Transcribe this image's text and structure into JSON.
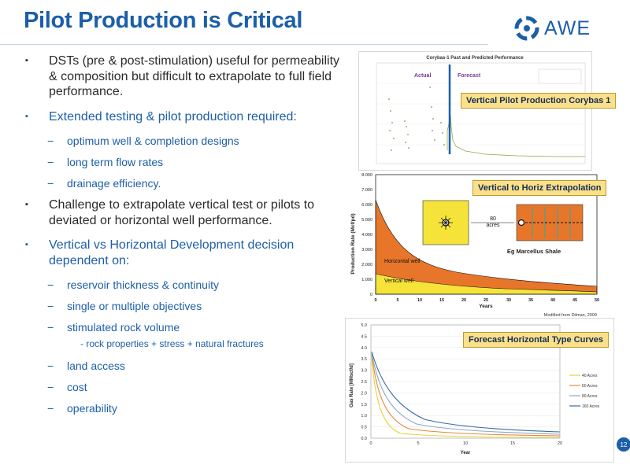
{
  "title": "Pilot Production is Critical",
  "logo": {
    "text": "AWE"
  },
  "bullets": [
    {
      "text": "DSTs (pre & post-stimulation) useful for permeability & composition but difficult to extrapolate to full field performance.",
      "color": "dark"
    },
    {
      "text": "Extended testing & pilot production required:",
      "color": "blue",
      "sub": [
        "optimum well & completion designs",
        "long term flow rates",
        "drainage efficiency."
      ]
    },
    {
      "text": "Challenge to extrapolate vertical test or pilots to deviated or horizontal well performance.",
      "color": "dark"
    },
    {
      "text": "Vertical vs Horizontal Development decision dependent on:",
      "color": "blue",
      "sub": [
        "reservoir thickness & continuity",
        "single or multiple objectives",
        "stimulated rock volume",
        "land access",
        "cost",
        "operability"
      ],
      "subsub": "- rock properties + stress + natural fractures"
    }
  ],
  "chart1": {
    "title": "Corybas-1 Past and Predicted Performance",
    "actual_label": "Actual",
    "forecast_label": "Forecast",
    "callout": "Vertical Pilot Production Corybas 1"
  },
  "chart2": {
    "callout": "Vertical to Horiz Extrapolation",
    "ylabel": "Production Rate (Mcf/pd)",
    "xlabel": "Years",
    "yticks": [
      "8.000",
      "7.000",
      "6.000",
      "5.000",
      "4.000",
      "3.000",
      "2.000",
      "1.000",
      "0"
    ],
    "xticks": [
      "0",
      "5",
      "10",
      "15",
      "20",
      "25",
      "30",
      "35",
      "40",
      "45",
      "50"
    ],
    "horizontal_label": "Horizontal well",
    "vertical_label": "Vertical well",
    "acres_label": "80",
    "acres_unit": "acres",
    "shale_label": "Eg Marcellus Shale",
    "source": "Modified from Dilman, 2009"
  },
  "chart3": {
    "callout": "Forecast Horizontal Type Curves",
    "ylabel": "Gas Rate [MMscf/d]",
    "xlabel": "Year",
    "yticks": [
      "5.0",
      "4.5",
      "4.0",
      "3.5",
      "3.0",
      "2.5",
      "2.0",
      "1.5",
      "1.0",
      "0.5",
      "0.0"
    ],
    "xticks": [
      "0",
      "5",
      "10",
      "15",
      "20"
    ],
    "legend": [
      "40 Acres",
      "60 Acres",
      "80 Acres",
      "160 Acres"
    ],
    "colors": [
      "#e8d23a",
      "#e88a3a",
      "#8aa8c8",
      "#3a6aa8"
    ]
  },
  "page_number": "12",
  "colors": {
    "accent": "#1c5fa8",
    "callout": "#fbe08a",
    "horizontal": "#e8762a",
    "vertical": "#f5e33a"
  }
}
